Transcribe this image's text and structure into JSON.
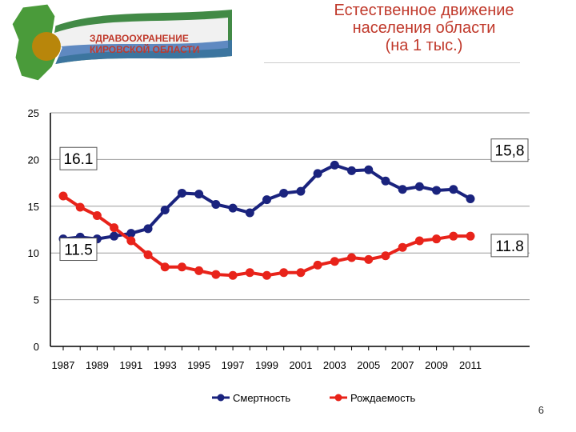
{
  "header": {
    "logo_text_line1": "ЗДРАВООХРАНЕНИЕ",
    "logo_text_line2": "КИРОВСКОЙ ОБЛАСТИ",
    "title_line1": "Естественное движение",
    "title_line2": "населения области",
    "title_line3": "(на 1 тыс.)"
  },
  "page_number": "6",
  "colors": {
    "mortality": "#1a237e",
    "birth": "#e8231a",
    "title": "#c0392b"
  },
  "chart_data": {
    "type": "line",
    "title": "Естественное движение населения области (на 1 тыс.)",
    "x": [
      1987,
      1988,
      1989,
      1990,
      1991,
      1992,
      1993,
      1994,
      1995,
      1996,
      1997,
      1998,
      1999,
      2000,
      2001,
      2002,
      2003,
      2004,
      2005,
      2006,
      2007,
      2008,
      2009,
      2010,
      2011
    ],
    "xticks": [
      "1987",
      "1989",
      "1991",
      "1993",
      "1995",
      "1997",
      "1999",
      "2001",
      "2003",
      "2005",
      "2007",
      "2009",
      "2011"
    ],
    "yticks": [
      "0",
      "5",
      "10",
      "15",
      "20",
      "25"
    ],
    "ylim": [
      0,
      25
    ],
    "grid": true,
    "legend_position": "bottom",
    "series": [
      {
        "name": "Смертность",
        "values": [
          11.5,
          11.7,
          11.5,
          11.8,
          12.1,
          12.6,
          14.6,
          16.4,
          16.3,
          15.2,
          14.8,
          14.3,
          15.7,
          16.4,
          16.6,
          18.5,
          19.4,
          18.8,
          18.9,
          17.7,
          16.8,
          17.1,
          16.7,
          16.8,
          15.8
        ]
      },
      {
        "name": "Рождаемость",
        "values": [
          16.1,
          14.9,
          14.0,
          12.7,
          11.3,
          9.8,
          8.5,
          8.5,
          8.1,
          7.7,
          7.6,
          7.9,
          7.6,
          7.9,
          7.9,
          8.7,
          9.1,
          9.5,
          9.3,
          9.7,
          10.6,
          11.3,
          11.5,
          11.8,
          11.8
        ]
      }
    ],
    "annotations": [
      {
        "text": "16.1",
        "series": "Рождаемость",
        "x": 1987
      },
      {
        "text": "11.5",
        "series": "Смертность",
        "x": 1987
      },
      {
        "text": "15,8",
        "series": "Смертность",
        "x": 2011
      },
      {
        "text": "11.8",
        "series": "Рождаемость",
        "x": 2011
      }
    ]
  }
}
